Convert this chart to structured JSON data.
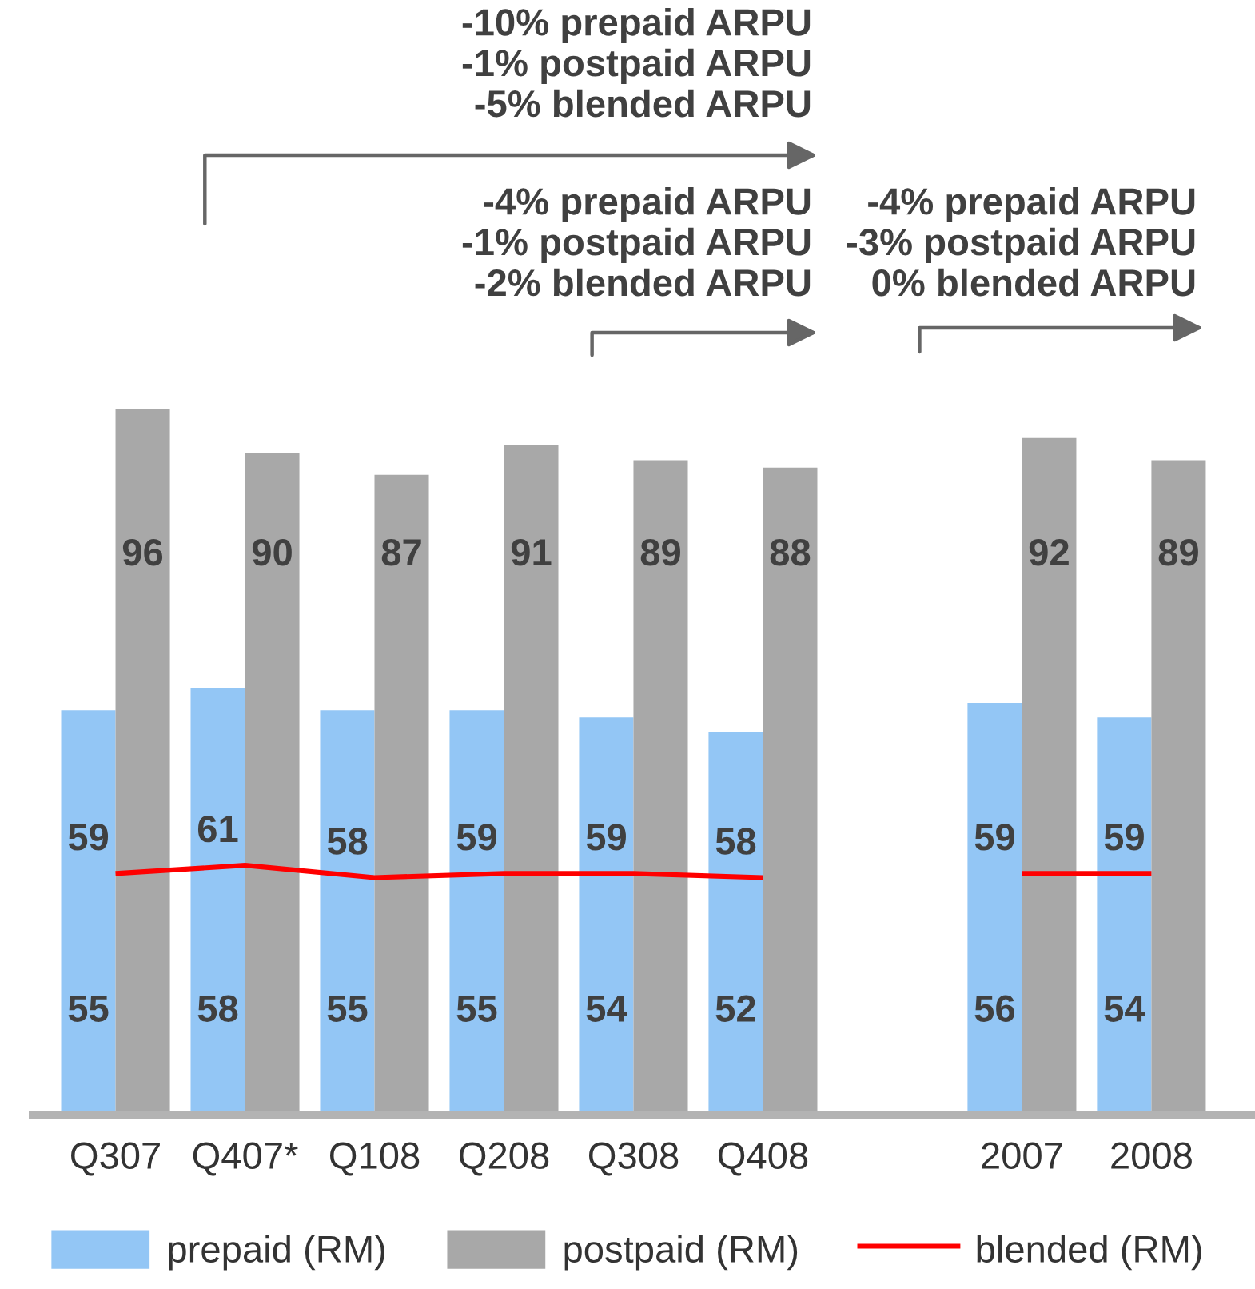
{
  "chart_data": {
    "type": "bar",
    "categories": [
      "Q307",
      "Q407*",
      "Q108",
      "Q208",
      "Q308",
      "Q408",
      null,
      "2007",
      "2008"
    ],
    "series": [
      {
        "name": "prepaid (RM)",
        "color": "#93c6f5",
        "values": [
          55,
          58,
          55,
          55,
          54,
          52,
          null,
          56,
          54
        ]
      },
      {
        "name": "postpaid (RM)",
        "color": "#a8a8a8",
        "values": [
          96,
          90,
          87,
          91,
          89,
          88,
          null,
          92,
          89
        ]
      },
      {
        "name": "blended (RM)",
        "type": "line",
        "axis": "y2",
        "color": "#ff0000",
        "values": [
          59,
          61,
          58,
          59,
          59,
          58,
          null,
          59,
          59
        ]
      }
    ],
    "data_labels": true,
    "legend": "bottom",
    "tick_labels": "x",
    "annotations": [
      "-10% prepaid ARPU\n-1% postpaid ARPU\n-5% blended ARPU",
      "-4% prepaid ARPU\n-1% postpaid ARPU\n-2% blended ARPU",
      "-4% prepaid ARPU\n-3% postpaid ARPU\n0% blended ARPU"
    ]
  }
}
